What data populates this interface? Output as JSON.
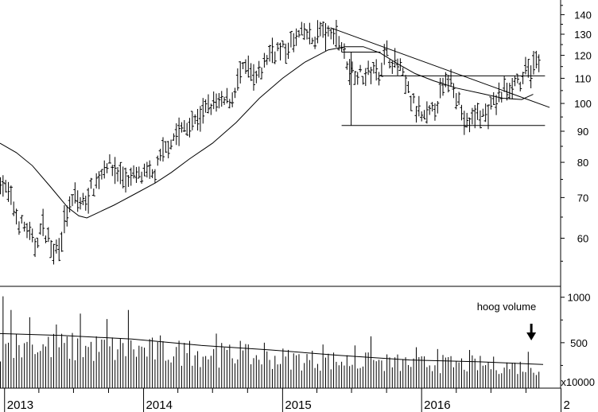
{
  "chart_data": [
    {
      "type": "ohlc",
      "panel": "price",
      "scale": "log",
      "ylim": [
        50,
        148
      ],
      "y_ticks": [
        60,
        70,
        80,
        90,
        100,
        110,
        120,
        130,
        140
      ],
      "y_tick_labels": [
        "60",
        "70",
        "80",
        "90",
        "100",
        "110",
        "120",
        "130",
        "140"
      ],
      "x_tick_labels": [
        "2013",
        "2014",
        "2015",
        "2016",
        "2"
      ],
      "x_tick_dates": [
        "2013-01-01",
        "2014-01-01",
        "2015-01-01",
        "2016-01-01",
        "2017-01-01"
      ],
      "xlim": [
        "2012-12-20",
        "2016-12-31"
      ],
      "price_points": [
        [
          "2012-12-21",
          75
        ],
        [
          "2013-01-15",
          70
        ],
        [
          "2013-02-05",
          64
        ],
        [
          "2013-03-01",
          62
        ],
        [
          "2013-03-20",
          58
        ],
        [
          "2013-04-10",
          63
        ],
        [
          "2013-04-25",
          60
        ],
        [
          "2013-05-10",
          57
        ],
        [
          "2013-05-25",
          59
        ],
        [
          "2013-06-15",
          66
        ],
        [
          "2013-07-05",
          70
        ],
        [
          "2013-07-25",
          68
        ],
        [
          "2013-08-15",
          72
        ],
        [
          "2013-09-05",
          75
        ],
        [
          "2013-09-25",
          80
        ],
        [
          "2013-10-15",
          78
        ],
        [
          "2013-11-05",
          76
        ],
        [
          "2013-11-25",
          75
        ],
        [
          "2013-12-15",
          76
        ],
        [
          "2014-01-10",
          76
        ],
        [
          "2014-02-01",
          77
        ],
        [
          "2014-02-25",
          84
        ],
        [
          "2014-03-20",
          88
        ],
        [
          "2014-04-15",
          91
        ],
        [
          "2014-05-10",
          93
        ],
        [
          "2014-06-05",
          96
        ],
        [
          "2014-06-30",
          100
        ],
        [
          "2014-07-25",
          100
        ],
        [
          "2014-08-20",
          102
        ],
        [
          "2014-09-10",
          111
        ],
        [
          "2014-09-30",
          115
        ],
        [
          "2014-10-20",
          108
        ],
        [
          "2014-11-05",
          113
        ],
        [
          "2014-11-25",
          121
        ],
        [
          "2014-12-15",
          123
        ],
        [
          "2015-01-10",
          122
        ],
        [
          "2015-02-05",
          128
        ],
        [
          "2015-02-25",
          131
        ],
        [
          "2015-03-20",
          127
        ],
        [
          "2015-04-10",
          132
        ],
        [
          "2015-05-01",
          129
        ],
        [
          "2015-05-20",
          131
        ],
        [
          "2015-06-10",
          122
        ],
        [
          "2015-06-25",
          114
        ],
        [
          "2015-07-10",
          113
        ],
        [
          "2015-07-30",
          111
        ],
        [
          "2015-08-20",
          113
        ],
        [
          "2015-09-10",
          113
        ],
        [
          "2015-09-30",
          121
        ],
        [
          "2015-10-20",
          117
        ],
        [
          "2015-11-05",
          114
        ],
        [
          "2015-11-25",
          105
        ],
        [
          "2015-12-15",
          98
        ],
        [
          "2016-01-05",
          94
        ],
        [
          "2016-01-25",
          96
        ],
        [
          "2016-02-15",
          102
        ],
        [
          "2016-03-05",
          108
        ],
        [
          "2016-03-20",
          111
        ],
        [
          "2016-04-05",
          102
        ],
        [
          "2016-04-20",
          94
        ],
        [
          "2016-05-05",
          92
        ],
        [
          "2016-05-25",
          97
        ],
        [
          "2016-06-15",
          95
        ],
        [
          "2016-07-05",
          99
        ],
        [
          "2016-07-25",
          103
        ],
        [
          "2016-08-10",
          106
        ],
        [
          "2016-08-25",
          108
        ],
        [
          "2016-09-10",
          110
        ],
        [
          "2016-09-20",
          106
        ],
        [
          "2016-10-01",
          114
        ],
        [
          "2016-10-15",
          113
        ],
        [
          "2016-10-30",
          118
        ],
        [
          "2016-11-10",
          114
        ]
      ],
      "moving_average": [
        [
          "2012-12-20",
          86
        ],
        [
          "2013-02-01",
          83
        ],
        [
          "2013-03-15",
          79
        ],
        [
          "2013-05-01",
          73
        ],
        [
          "2013-06-15",
          67.5
        ],
        [
          "2013-07-15",
          65.3
        ],
        [
          "2013-08-05",
          64.8
        ],
        [
          "2013-09-01",
          66
        ],
        [
          "2013-10-15",
          68
        ],
        [
          "2013-12-01",
          70.5
        ],
        [
          "2014-02-01",
          74
        ],
        [
          "2014-03-15",
          77
        ],
        [
          "2014-05-01",
          81
        ],
        [
          "2014-07-01",
          86
        ],
        [
          "2014-09-01",
          93
        ],
        [
          "2014-11-01",
          102
        ],
        [
          "2015-01-01",
          110
        ],
        [
          "2015-03-01",
          117
        ],
        [
          "2015-05-01",
          122.5
        ],
        [
          "2015-06-15",
          124
        ],
        [
          "2015-08-01",
          124
        ],
        [
          "2015-09-15",
          121
        ],
        [
          "2015-11-01",
          116
        ],
        [
          "2015-12-15",
          112
        ],
        [
          "2016-02-01",
          109
        ],
        [
          "2016-04-01",
          106
        ],
        [
          "2016-06-01",
          104
        ],
        [
          "2016-08-01",
          102
        ],
        [
          "2016-09-20",
          101.5
        ],
        [
          "2016-10-20",
          103.5
        ]
      ],
      "trendline_descending": [
        [
          "2015-05-10",
          133
        ],
        [
          "2016-12-02",
          98.5
        ]
      ],
      "horizontal_lines": [
        {
          "from": "2015-06-05",
          "to": "2016-11-20",
          "y": 92
        },
        {
          "from": "2015-06-05",
          "to": "2015-09-15",
          "y": 121.5
        },
        {
          "from": "2015-09-10",
          "to": "2016-11-20",
          "y": 111
        }
      ],
      "vertical_lines": [
        {
          "x": "2015-06-30",
          "from": 92,
          "to": 121.5
        }
      ]
    },
    {
      "type": "bar",
      "panel": "volume",
      "ylim": [
        0,
        1120
      ],
      "y_ticks": [
        500,
        1000
      ],
      "y_tick_labels": [
        "500",
        "1000"
      ],
      "unit_label": "x10000",
      "annotation": "hoog volume",
      "annotation_date": "2016-10-15",
      "volume_base": [
        [
          "2012-12-20",
          520
        ],
        [
          "2013-06-01",
          500
        ],
        [
          "2013-12-01",
          470
        ],
        [
          "2014-06-01",
          420
        ],
        [
          "2014-12-01",
          370
        ],
        [
          "2015-06-01",
          330
        ],
        [
          "2015-12-01",
          300
        ],
        [
          "2016-06-01",
          290
        ],
        [
          "2016-11-15",
          250
        ]
      ],
      "volume_spikes": [
        [
          "2012-12-28",
          1010
        ],
        [
          "2013-01-15",
          860
        ],
        [
          "2013-03-10",
          780
        ],
        [
          "2013-05-20",
          700
        ],
        [
          "2013-07-20",
          820
        ],
        [
          "2013-09-25",
          760
        ],
        [
          "2013-11-25",
          860
        ],
        [
          "2014-02-15",
          580
        ],
        [
          "2014-05-05",
          520
        ],
        [
          "2014-07-10",
          600
        ],
        [
          "2014-09-15",
          520
        ],
        [
          "2014-11-15",
          500
        ],
        [
          "2015-04-15",
          480
        ],
        [
          "2015-07-10",
          470
        ],
        [
          "2015-08-20",
          570
        ],
        [
          "2015-12-15",
          450
        ],
        [
          "2016-02-10",
          430
        ],
        [
          "2016-05-05",
          420
        ],
        [
          "2016-10-10",
          400
        ]
      ],
      "volume_ma": [
        [
          "2012-12-20",
          600
        ],
        [
          "2013-06-01",
          580
        ],
        [
          "2013-12-01",
          540
        ],
        [
          "2014-06-01",
          470
        ],
        [
          "2014-12-01",
          420
        ],
        [
          "2015-06-01",
          360
        ],
        [
          "2015-12-01",
          310
        ],
        [
          "2016-06-01",
          290
        ],
        [
          "2016-11-15",
          260
        ]
      ]
    }
  ]
}
